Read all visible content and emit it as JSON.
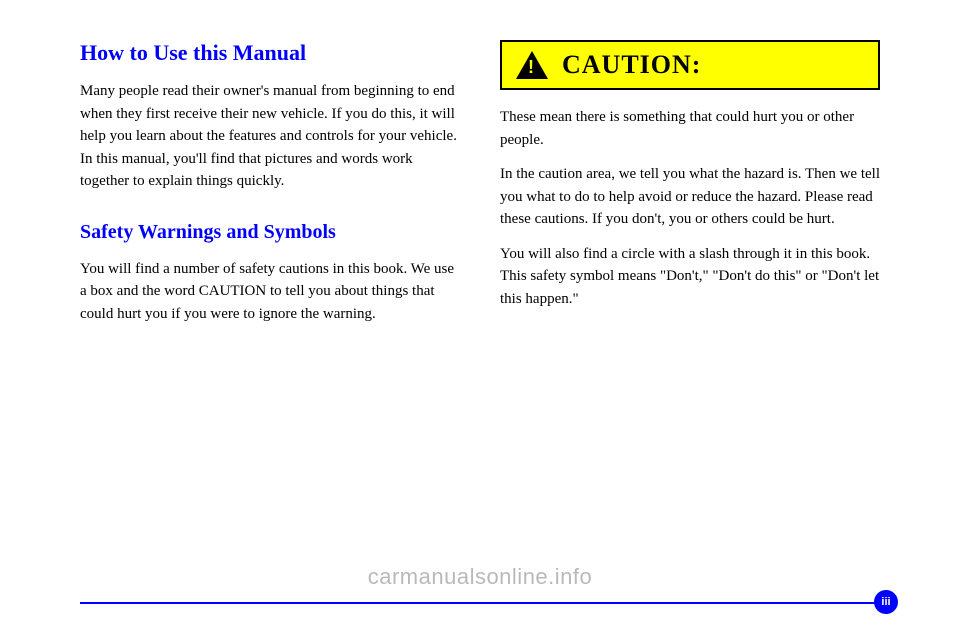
{
  "left": {
    "heading": "How to Use this Manual",
    "p1": "Many people read their owner's manual from beginning to end when they first receive their new vehicle. If you do this, it will help you learn about the features and controls for your vehicle. In this manual, you'll find that pictures and words work together to explain things quickly.",
    "subheading": "Safety Warnings and Symbols",
    "p2": "You will find a number of safety cautions in this book. We use a box and the word CAUTION to tell you about things that could hurt you if you were to ignore the warning."
  },
  "right": {
    "caution_label": "CAUTION:",
    "p1": "These mean there is something that could hurt you or other people.",
    "p2": "In the caution area, we tell you what the hazard is. Then we tell you what to do to help avoid or reduce the hazard. Please read these cautions. If you don't, you or others could be hurt.",
    "p3": "You will also find a circle with a slash through it in this book. This safety symbol means \"Don't,\" \"Don't do this\" or \"Don't let this happen.\""
  },
  "page_number": "iii",
  "watermark": "carmanualsonline.info"
}
